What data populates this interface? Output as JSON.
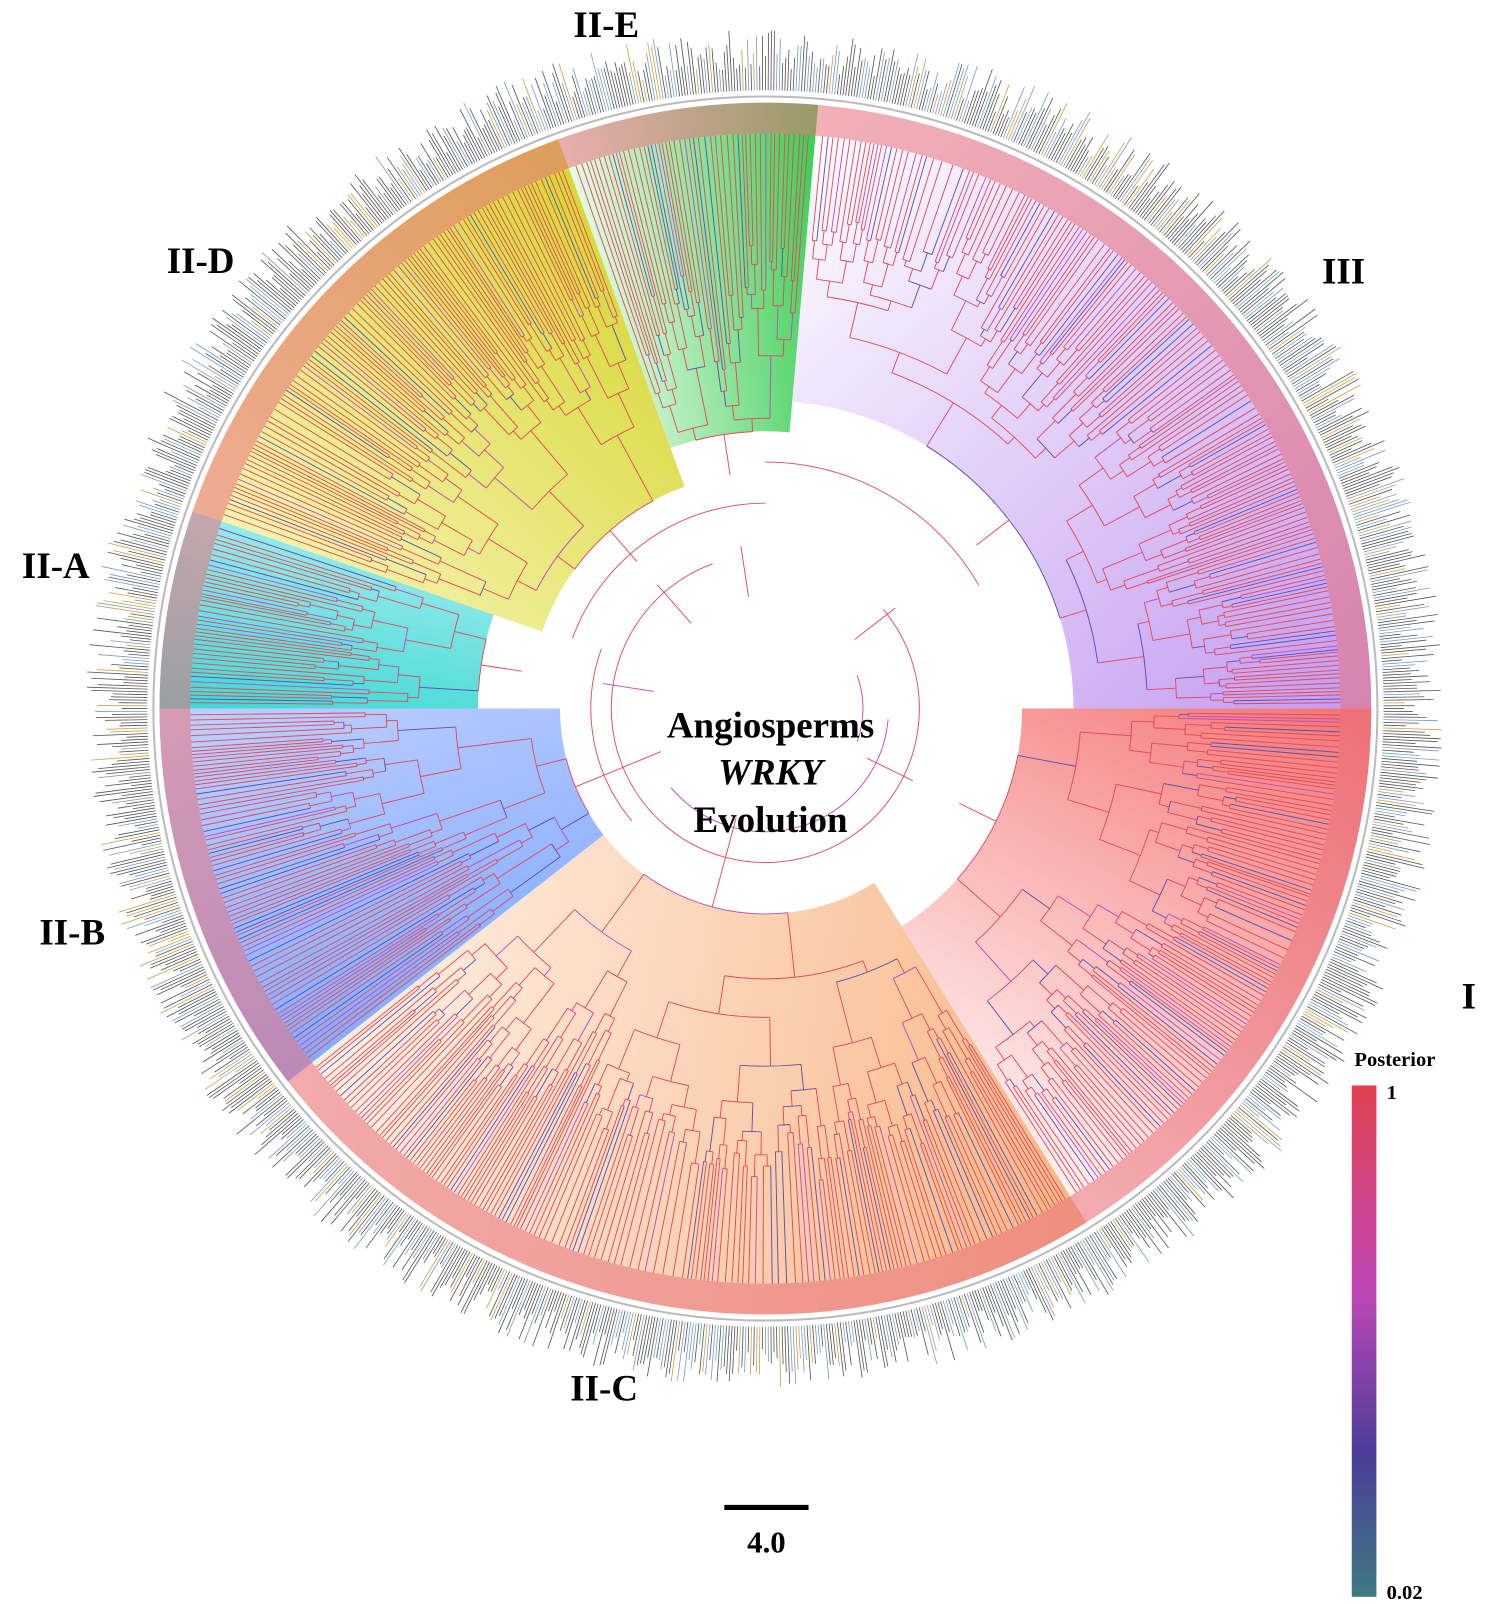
{
  "title": {
    "line1": "Angiosperms",
    "line2": "WRKY",
    "line3": "Evolution"
  },
  "clades": [
    {
      "label": "II-E"
    },
    {
      "label": "III"
    },
    {
      "label": "II-D"
    },
    {
      "label": "II-A"
    },
    {
      "label": "II-B"
    },
    {
      "label": "I"
    },
    {
      "label": "II-C"
    }
  ],
  "legend": {
    "title": "Posterior",
    "max": "1",
    "min": "0.02"
  },
  "scale_bar": {
    "label": "4.0"
  }
}
